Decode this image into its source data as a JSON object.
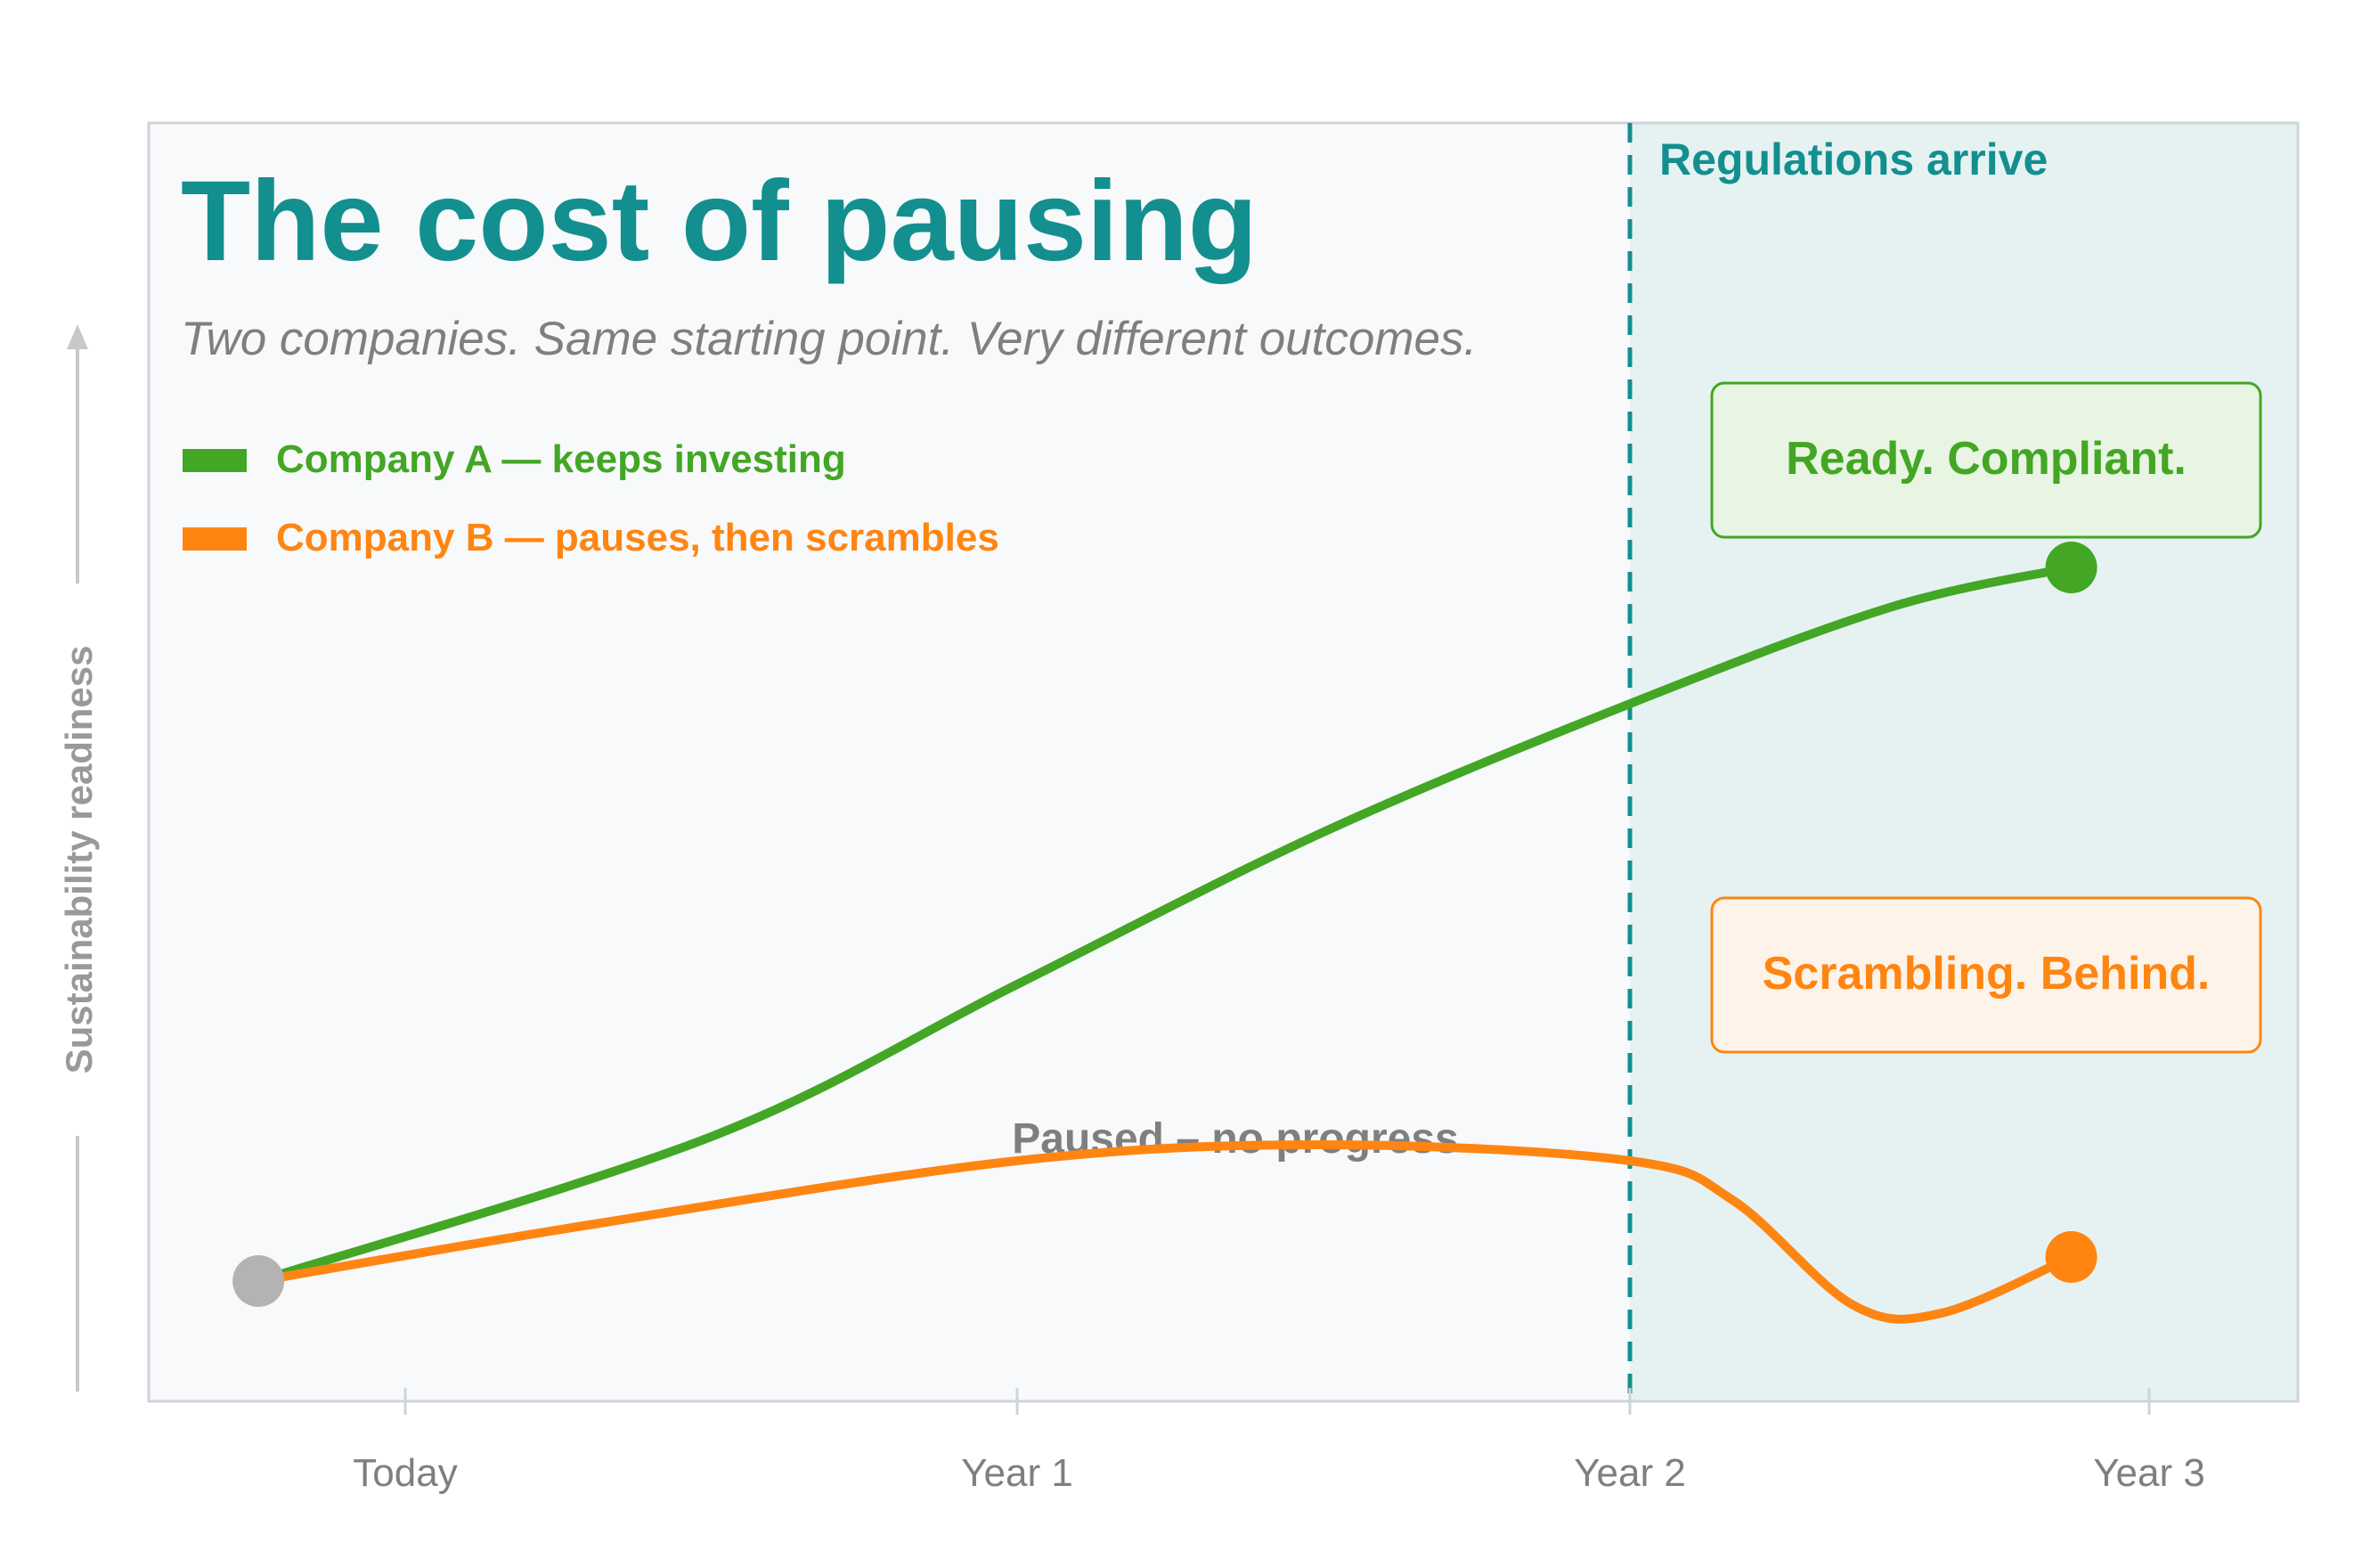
{
  "chart_data": {
    "type": "line",
    "title": "The cost of pausing",
    "subtitle": "Two companies. Same starting point. Very different outcomes.",
    "ylabel": "Sustainability readiness",
    "xlabel": "",
    "categories": [
      "Today",
      "Year 1",
      "Year 2",
      "Year 3"
    ],
    "regulation_label": "Regulations arrive",
    "pause_label": "Paused – no progress",
    "series": [
      {
        "name": "Company A — keeps investing",
        "color": "#43a624",
        "outcome": "Ready. Compliant.",
        "points": [
          {
            "x": -0.24,
            "y": 0.15
          },
          {
            "x": 0.5,
            "y": 0.33
          },
          {
            "x": 1.0,
            "y": 0.52
          },
          {
            "x": 1.5,
            "y": 0.71
          },
          {
            "x": 2.0,
            "y": 0.87
          },
          {
            "x": 2.5,
            "y": 0.99
          },
          {
            "x": 2.85,
            "y": 1.04
          }
        ]
      },
      {
        "name": "Company B — pauses, then scrambles",
        "color": "#ff8512",
        "outcome": "Scrambling. Behind.",
        "points": [
          {
            "x": -0.24,
            "y": 0.15
          },
          {
            "x": 0.3,
            "y": 0.22
          },
          {
            "x": 1.0,
            "y": 0.3
          },
          {
            "x": 1.5,
            "y": 0.32
          },
          {
            "x": 2.0,
            "y": 0.3
          },
          {
            "x": 2.2,
            "y": 0.25
          },
          {
            "x": 2.43,
            "y": 0.12
          },
          {
            "x": 2.6,
            "y": 0.11
          },
          {
            "x": 2.85,
            "y": 0.18
          }
        ]
      }
    ],
    "start_point": {
      "x": -0.24,
      "y": 0.15,
      "color": "#b3b3b3"
    },
    "regulation_x": 2.0,
    "colors": {
      "teal": "#138f8f",
      "gray_text": "#7f7f7f",
      "panel_bg": "#f7f9fb",
      "shade_bg": "#e6f2f2"
    }
  }
}
